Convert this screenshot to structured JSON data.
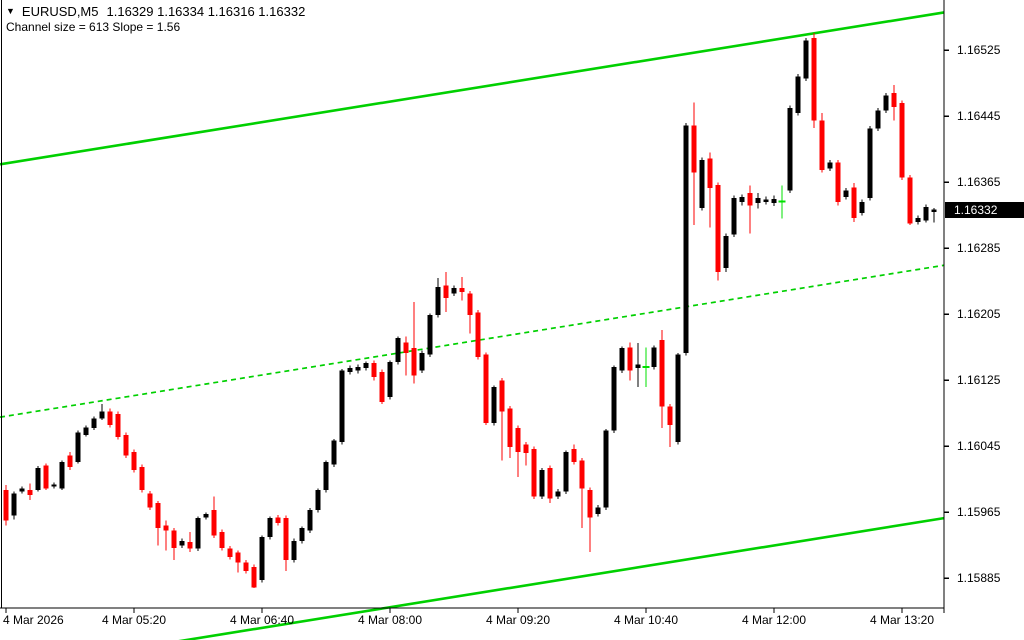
{
  "header": {
    "collapse_icon": "▼",
    "symbol_period": "EURUSD,M5",
    "ohlc_text": "1.16329 1.16334 1.16316 1.16332",
    "indicator_line": "Channel size = 613 Slope = 1.56"
  },
  "price_axis": {
    "labels": [
      "1.16525",
      "1.16445",
      "1.16365",
      "1.16285",
      "1.16205",
      "1.16125",
      "1.16045",
      "1.15965",
      "1.15885"
    ],
    "current_price": "1.16332"
  },
  "time_axis": {
    "labels": [
      {
        "text": "4 Mar 2026",
        "bar": 0
      },
      {
        "text": "4 Mar 05:20",
        "bar": 16
      },
      {
        "text": "4 Mar 06:40",
        "bar": 32
      },
      {
        "text": "4 Mar 08:00",
        "bar": 48
      },
      {
        "text": "4 Mar 09:20",
        "bar": 64
      },
      {
        "text": "4 Mar 10:40",
        "bar": 80
      },
      {
        "text": "4 Mar 12:00",
        "bar": 96
      },
      {
        "text": "4 Mar 13:20",
        "bar": 112
      }
    ]
  },
  "channel": {
    "size_points": 613,
    "slope_points_per_bar": 1.56,
    "upper_line": {
      "price_at_bar0": 1.16388,
      "price_at_bar116": 1.16569
    },
    "middle_line_style": "dashed"
  },
  "colors": {
    "background": "#ffffff",
    "bull": "#000000",
    "bear": "#fe0000",
    "doji": "#00e000",
    "channel": "#00d000",
    "axis": "#000000",
    "badge_bg": "#000000",
    "badge_text": "#ffffff"
  },
  "chart_data": {
    "type": "candlestick",
    "symbol": "EURUSD",
    "timeframe": "M5",
    "date": "4 Mar 2026",
    "start_time": "04:00",
    "minutes_per_bar": 5,
    "ylim": [
      1.15849,
      1.16586
    ],
    "bars": 117,
    "grid": false,
    "legend": "none",
    "current_bar": {
      "open": 1.16329,
      "high": 1.16334,
      "low": 1.16316,
      "close": 1.16332
    },
    "candles": [
      [
        1.15992,
        1.15998,
        1.15949,
        1.15955
      ],
      [
        1.15961,
        1.1599,
        1.15956,
        1.15988
      ],
      [
        1.1599,
        1.15996,
        1.15988,
        1.15994
      ],
      [
        1.15992,
        1.16,
        1.1598,
        1.15986
      ],
      [
        1.15992,
        1.16021,
        1.1599,
        1.16019
      ],
      [
        1.16022,
        1.16024,
        1.15992,
        1.15994
      ],
      [
        1.15996,
        1.16001,
        1.15994,
        1.15999
      ],
      [
        1.15994,
        1.16028,
        1.15992,
        1.16026
      ],
      [
        1.16034,
        1.16038,
        1.16016,
        1.1602
      ],
      [
        1.16026,
        1.16064,
        1.16024,
        1.16062
      ],
      [
        1.16059,
        1.1607,
        1.16057,
        1.16068
      ],
      [
        1.16067,
        1.16081,
        1.16065,
        1.16079
      ],
      [
        1.16079,
        1.16096,
        1.16077,
        1.16087
      ],
      [
        1.16087,
        1.16091,
        1.16068,
        1.16071
      ],
      [
        1.16084,
        1.16087,
        1.16053,
        1.16056
      ],
      [
        1.16059,
        1.16062,
        1.16031,
        1.16034
      ],
      [
        1.16038,
        1.16041,
        1.16013,
        1.16016
      ],
      [
        1.1602,
        1.16023,
        1.15989,
        1.15992
      ],
      [
        1.15988,
        1.15991,
        1.15968,
        1.15971
      ],
      [
        1.15976,
        1.15979,
        1.15925,
        1.15946
      ],
      [
        1.15949,
        1.15955,
        1.15919,
        1.15943
      ],
      [
        1.15943,
        1.15946,
        1.15907,
        1.15922
      ],
      [
        1.15925,
        1.15933,
        1.15922,
        1.1593
      ],
      [
        1.15929,
        1.15941,
        1.15917,
        1.15921
      ],
      [
        1.15921,
        1.1596,
        1.15918,
        1.15958
      ],
      [
        1.15959,
        1.15965,
        1.15956,
        1.15963
      ],
      [
        1.15968,
        1.15984,
        1.15934,
        1.15937
      ],
      [
        1.15941,
        1.15944,
        1.15919,
        1.15922
      ],
      [
        1.15921,
        1.15924,
        1.15908,
        1.15911
      ],
      [
        1.15916,
        1.15919,
        1.15892,
        1.15904
      ],
      [
        1.15904,
        1.15907,
        1.15891,
        1.15894
      ],
      [
        1.15899,
        1.15902,
        1.15873,
        1.15874
      ],
      [
        1.15883,
        1.15937,
        1.1588,
        1.15935
      ],
      [
        1.15935,
        1.1596,
        1.15932,
        1.15958
      ],
      [
        1.15959,
        1.15962,
        1.15949,
        1.15952
      ],
      [
        1.15958,
        1.15961,
        1.15894,
        1.15907
      ],
      [
        1.15907,
        1.15933,
        1.15904,
        1.1593
      ],
      [
        1.1593,
        1.15948,
        1.15927,
        1.15946
      ],
      [
        1.15943,
        1.1597,
        1.1594,
        1.15968
      ],
      [
        1.15968,
        1.15994,
        1.15965,
        1.15992
      ],
      [
        1.15992,
        1.16028,
        1.15989,
        1.16026
      ],
      [
        1.16023,
        1.16054,
        1.1602,
        1.16052
      ],
      [
        1.1605,
        1.16139,
        1.16047,
        1.16137
      ],
      [
        1.16135,
        1.16143,
        1.16132,
        1.1614
      ],
      [
        1.16137,
        1.16144,
        1.16133,
        1.16141
      ],
      [
        1.1614,
        1.16148,
        1.16137,
        1.16146
      ],
      [
        1.16146,
        1.16149,
        1.16125,
        1.16129
      ],
      [
        1.16135,
        1.16138,
        1.16096,
        1.16099
      ],
      [
        1.16105,
        1.16149,
        1.16102,
        1.16147
      ],
      [
        1.16147,
        1.16178,
        1.16144,
        1.16176
      ],
      [
        1.16171,
        1.16178,
        1.16131,
        1.16158
      ],
      [
        1.16164,
        1.1622,
        1.16121,
        1.16131
      ],
      [
        1.16137,
        1.16161,
        1.16134,
        1.16158
      ],
      [
        1.16156,
        1.16206,
        1.16153,
        1.16204
      ],
      [
        1.16204,
        1.16249,
        1.16201,
        1.16238
      ],
      [
        1.1624,
        1.16256,
        1.16208,
        1.16225
      ],
      [
        1.1623,
        1.1624,
        1.16227,
        1.16237
      ],
      [
        1.16237,
        1.1625,
        1.16222,
        1.16232
      ],
      [
        1.1623,
        1.16233,
        1.16182,
        1.16204
      ],
      [
        1.16207,
        1.1621,
        1.1615,
        1.16153
      ],
      [
        1.16156,
        1.16159,
        1.16071,
        1.16073
      ],
      [
        1.16073,
        1.16119,
        1.1607,
        1.16117
      ],
      [
        1.16125,
        1.16128,
        1.16028,
        1.16087
      ],
      [
        1.16091,
        1.16094,
        1.16031,
        1.16044
      ],
      [
        1.16067,
        1.1607,
        1.16008,
        1.16038
      ],
      [
        1.16047,
        1.1605,
        1.16022,
        1.16037
      ],
      [
        1.16042,
        1.16045,
        1.15981,
        1.15984
      ],
      [
        1.15984,
        1.16019,
        1.15981,
        1.16016
      ],
      [
        1.16019,
        1.16022,
        1.15976,
        1.15982
      ],
      [
        1.15984,
        1.15993,
        1.15981,
        1.1599
      ],
      [
        1.1599,
        1.1604,
        1.15987,
        1.16038
      ],
      [
        1.16042,
        1.16047,
        1.16023,
        1.16026
      ],
      [
        1.16028,
        1.16031,
        1.15946,
        1.15994
      ],
      [
        1.15992,
        1.15995,
        1.15917,
        1.15959
      ],
      [
        1.15963,
        1.15974,
        1.1596,
        1.15971
      ],
      [
        1.15971,
        1.16066,
        1.15968,
        1.16064
      ],
      [
        1.16064,
        1.16143,
        1.16061,
        1.16141
      ],
      [
        1.16137,
        1.16166,
        1.16134,
        1.16164
      ],
      [
        1.16165,
        1.16171,
        1.16125,
        1.16137
      ],
      [
        1.1614,
        1.1617,
        1.16117,
        1.16144
      ],
      [
        1.16141,
        1.16165,
        1.16117,
        1.16141
      ],
      [
        1.16141,
        1.16167,
        1.16138,
        1.16165
      ],
      [
        1.16174,
        1.16186,
        1.16067,
        1.16093
      ],
      [
        1.16093,
        1.16096,
        1.16044,
        1.16071
      ],
      [
        1.1605,
        1.16158,
        1.16047,
        1.16156
      ],
      [
        1.16158,
        1.16437,
        1.16155,
        1.16434
      ],
      [
        1.16434,
        1.16462,
        1.16313,
        1.16377
      ],
      [
        1.16334,
        1.16395,
        1.16331,
        1.16392
      ],
      [
        1.16394,
        1.16401,
        1.1631,
        1.16358
      ],
      [
        1.16362,
        1.16365,
        1.16246,
        1.16256
      ],
      [
        1.16261,
        1.16303,
        1.16256,
        1.163
      ],
      [
        1.16302,
        1.16349,
        1.16299,
        1.16346
      ],
      [
        1.16341,
        1.1635,
        1.16337,
        1.16347
      ],
      [
        1.16352,
        1.16361,
        1.16303,
        1.16337
      ],
      [
        1.1634,
        1.16352,
        1.16333,
        1.16346
      ],
      [
        1.16341,
        1.16348,
        1.16338,
        1.16344
      ],
      [
        1.1634,
        1.16349,
        1.16336,
        1.16345
      ],
      [
        1.16342,
        1.16361,
        1.16321,
        1.16342
      ],
      [
        1.16355,
        1.16458,
        1.16352,
        1.16455
      ],
      [
        1.16449,
        1.16496,
        1.16446,
        1.16493
      ],
      [
        1.16491,
        1.1654,
        1.16488,
        1.16537
      ],
      [
        1.1654,
        1.16546,
        1.16431,
        1.1644
      ],
      [
        1.1644,
        1.16449,
        1.16377,
        1.1638
      ],
      [
        1.16382,
        1.16392,
        1.16379,
        1.16389
      ],
      [
        1.16389,
        1.16392,
        1.16337,
        1.16341
      ],
      [
        1.16347,
        1.16358,
        1.16344,
        1.16355
      ],
      [
        1.16359,
        1.16364,
        1.16317,
        1.16322
      ],
      [
        1.16328,
        1.16344,
        1.16325,
        1.16341
      ],
      [
        1.16346,
        1.16433,
        1.16343,
        1.1643
      ],
      [
        1.1643,
        1.16455,
        1.16427,
        1.16452
      ],
      [
        1.16452,
        1.16473,
        1.16449,
        1.1647
      ],
      [
        1.16473,
        1.16483,
        1.1644,
        1.16456
      ],
      [
        1.16461,
        1.16464,
        1.16368,
        1.16371
      ],
      [
        1.16371,
        1.16374,
        1.16313,
        1.16315
      ],
      [
        1.16317,
        1.16325,
        1.16314,
        1.16322
      ],
      [
        1.16319,
        1.16338,
        1.16316,
        1.16335
      ],
      [
        1.16329,
        1.16334,
        1.16316,
        1.16332
      ]
    ]
  }
}
